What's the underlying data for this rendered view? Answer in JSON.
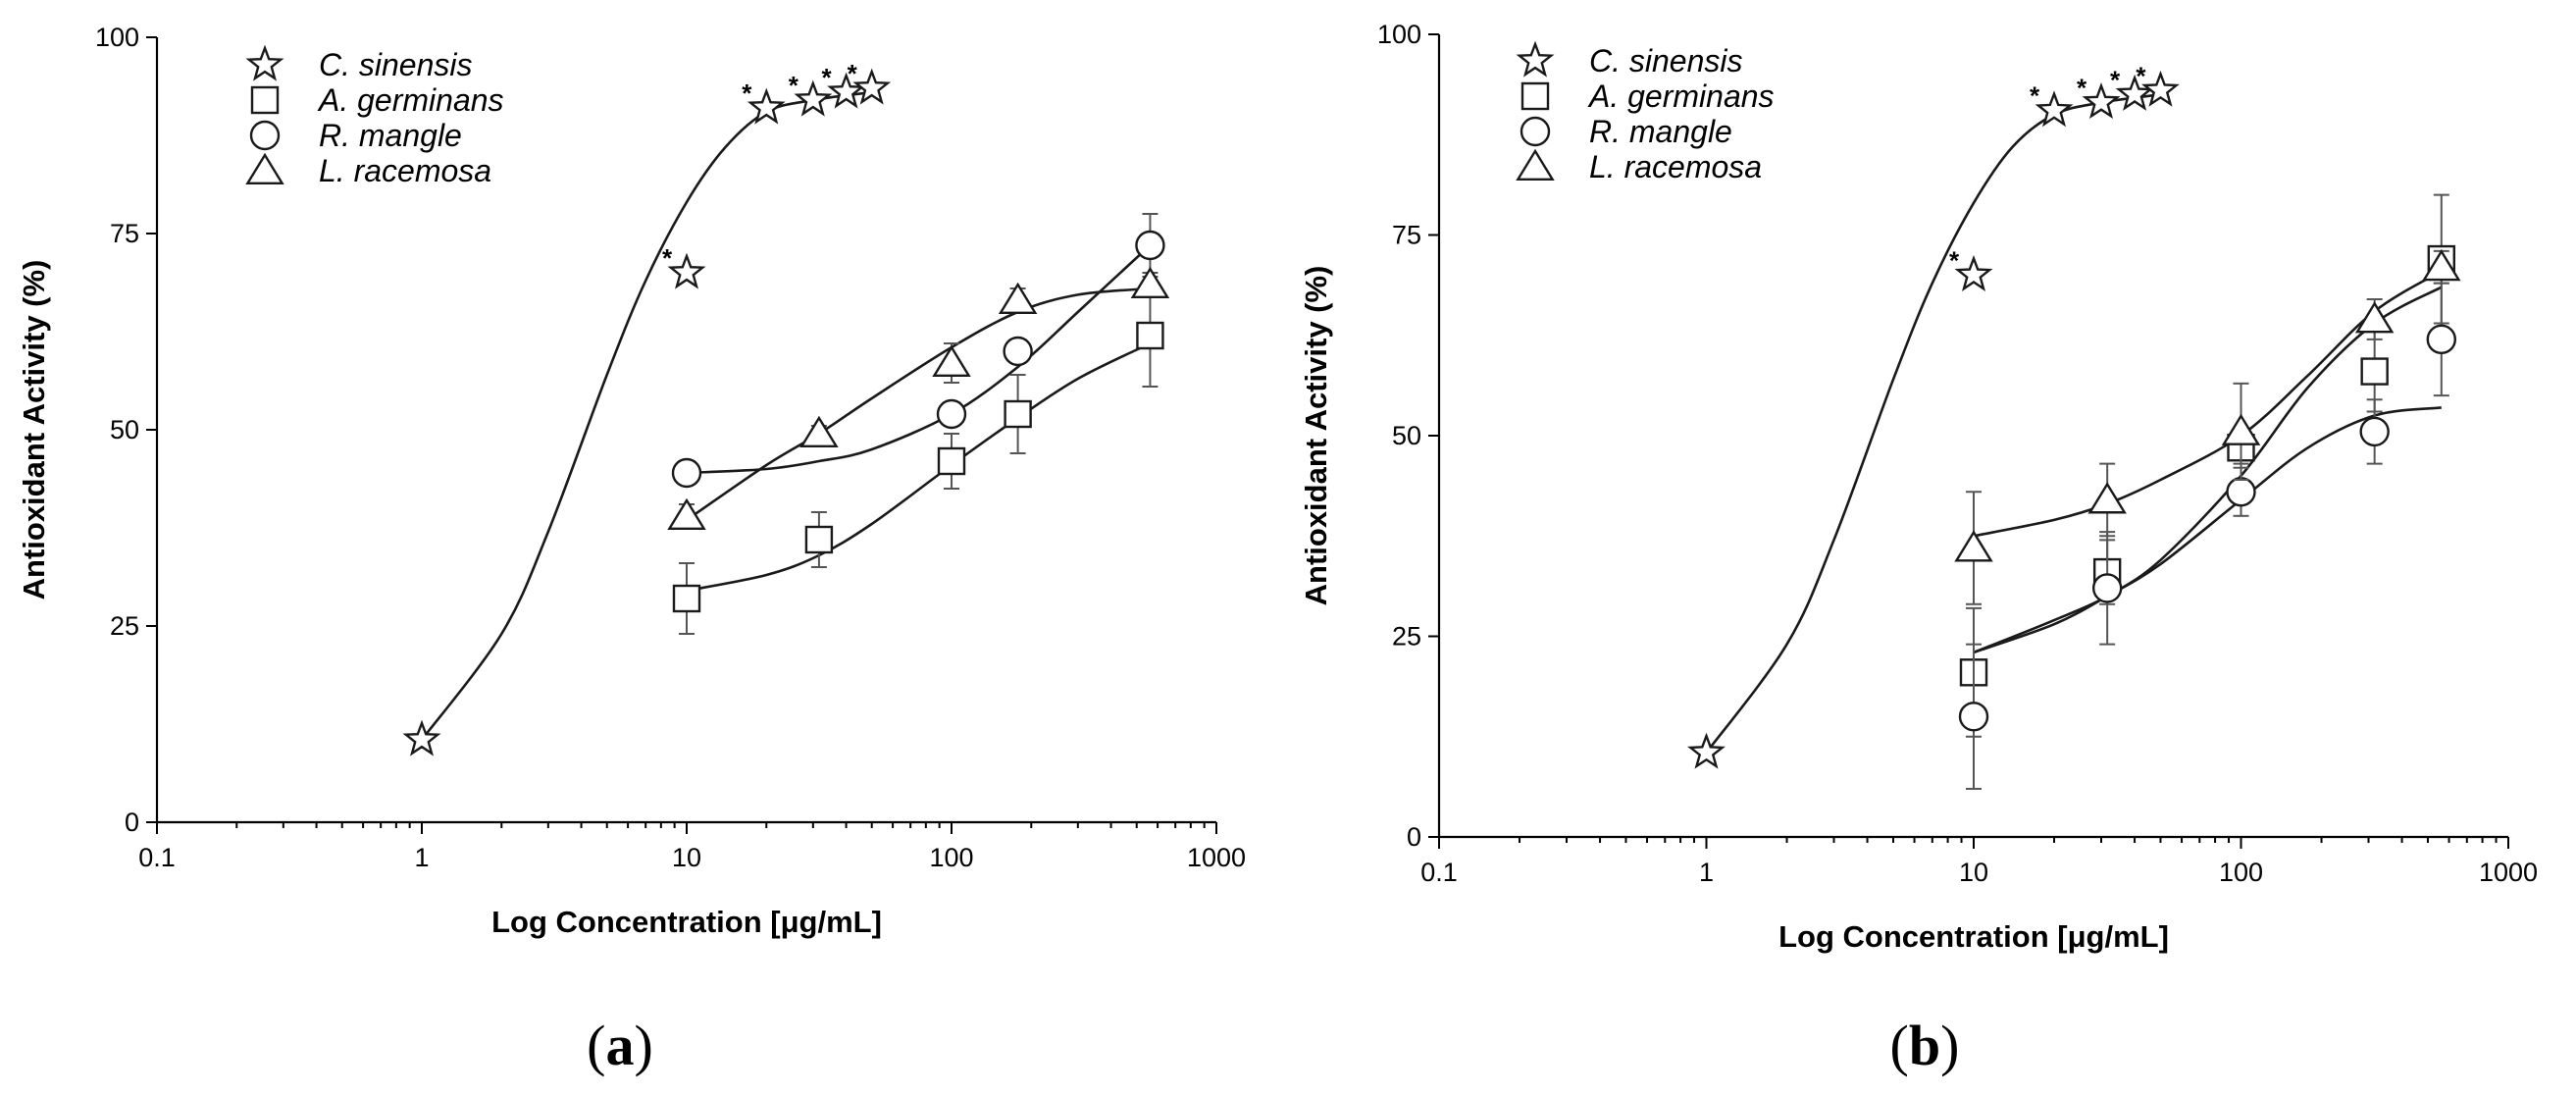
{
  "chart_data": [
    {
      "type": "scatter",
      "panel_label": "(a)",
      "xlabel": "Log Concentration [μg/mL]",
      "ylabel": "Antioxidant Activity (%)",
      "xscale": "log",
      "xlim": [
        0.1,
        1000
      ],
      "ylim": [
        0,
        100
      ],
      "xticks": [
        "0.1",
        "1",
        "10",
        "100",
        "1000"
      ],
      "yticks": [
        "0",
        "25",
        "50",
        "75",
        "100"
      ],
      "legend_position": "top-left",
      "series": [
        {
          "name": "C. sinensis",
          "marker": "star",
          "x": [
            1,
            10,
            20,
            30,
            40,
            50
          ],
          "y": [
            10.5,
            70,
            91,
            92,
            93,
            93.5
          ],
          "err": [
            0,
            0,
            0,
            0,
            0,
            0
          ],
          "significant": [
            false,
            true,
            true,
            true,
            true,
            true
          ],
          "fit_x": [
            1,
            2,
            3,
            5,
            7,
            10,
            14,
            20,
            30,
            50
          ],
          "fit_y": [
            10.5,
            24,
            37,
            57,
            69,
            79,
            86,
            90.5,
            92,
            93
          ]
        },
        {
          "name": "A. germinans",
          "marker": "square",
          "x": [
            10,
            31.6,
            100,
            178,
            562
          ],
          "y": [
            28.5,
            36,
            46,
            52,
            62
          ],
          "err": [
            4.5,
            3.5,
            3.5,
            5,
            6.5
          ],
          "significant": [
            false,
            false,
            false,
            false,
            false
          ],
          "fit_x": [
            10,
            20,
            31.6,
            50,
            100,
            178,
            300,
            562
          ],
          "fit_y": [
            29.5,
            31.5,
            34,
            38,
            45.5,
            51.5,
            56.5,
            61
          ]
        },
        {
          "name": "R. mangle",
          "marker": "circle",
          "x": [
            10,
            100,
            178,
            562
          ],
          "y": [
            44.5,
            52,
            60,
            73.5
          ],
          "err": [
            0.8,
            1.5,
            1.5,
            4
          ],
          "significant": [
            false,
            false,
            false,
            false
          ],
          "fit_x": [
            10,
            20,
            31.6,
            50,
            100,
            178,
            300,
            562
          ],
          "fit_y": [
            44.5,
            45,
            46,
            47.5,
            52,
            58,
            65,
            73.5
          ]
        },
        {
          "name": "L. racemosa",
          "marker": "triangle",
          "x": [
            10,
            31.6,
            100,
            178,
            562
          ],
          "y": [
            39,
            49.5,
            58.5,
            66.5,
            68.5
          ],
          "err": [
            1.5,
            1,
            2.5,
            1.5,
            1.5
          ],
          "significant": [
            false,
            false,
            false,
            false,
            false
          ],
          "fit_x": [
            10,
            20,
            31.6,
            50,
            100,
            178,
            300,
            562
          ],
          "fit_y": [
            38.5,
            45.5,
            49.5,
            54,
            60.5,
            65,
            67.2,
            68
          ]
        }
      ]
    },
    {
      "type": "scatter",
      "panel_label": "(b)",
      "xlabel": "Log Concentration [μg/mL]",
      "ylabel": "Antioxidant Activity (%)",
      "xscale": "log",
      "xlim": [
        0.1,
        1000
      ],
      "ylim": [
        0,
        100
      ],
      "xticks": [
        "0.1",
        "1",
        "10",
        "100",
        "1000"
      ],
      "yticks": [
        "0",
        "25",
        "50",
        "75",
        "100"
      ],
      "legend_position": "top-left",
      "series": [
        {
          "name": "C. sinensis",
          "marker": "star",
          "x": [
            1,
            10,
            20,
            30,
            40,
            50
          ],
          "y": [
            10.5,
            70,
            90.5,
            91.5,
            92.5,
            93
          ],
          "err": [
            0,
            0,
            0,
            0,
            0,
            0
          ],
          "significant": [
            false,
            true,
            true,
            true,
            true,
            true
          ],
          "fit_x": [
            1,
            2,
            3,
            5,
            7,
            10,
            14,
            20,
            30,
            50
          ],
          "fit_y": [
            10.5,
            24,
            37,
            57,
            69,
            79,
            86,
            90,
            91.5,
            92.5
          ]
        },
        {
          "name": "A. germinans",
          "marker": "square",
          "x": [
            10,
            31.6,
            100,
            316,
            562
          ],
          "y": [
            20.5,
            33,
            48.5,
            58,
            72
          ],
          "err": [
            8,
            4,
            2,
            5,
            8
          ],
          "significant": [
            false,
            false,
            false,
            false,
            false
          ],
          "fit_x": [
            10,
            20,
            31.6,
            50,
            100,
            178,
            316,
            562
          ],
          "fit_y": [
            23,
            27,
            30,
            34.5,
            45,
            56,
            64,
            68.5
          ]
        },
        {
          "name": "R. mangle",
          "marker": "circle",
          "x": [
            10,
            31.6,
            100,
            316,
            562
          ],
          "y": [
            15,
            31,
            43,
            50.5,
            62
          ],
          "err": [
            9,
            7,
            3,
            4,
            7
          ],
          "significant": [
            false,
            false,
            false,
            false,
            false
          ],
          "fit_x": [
            10,
            20,
            31.6,
            50,
            100,
            178,
            316,
            562
          ],
          "fit_y": [
            23,
            26.5,
            30,
            34,
            42,
            48.5,
            52.5,
            53.5
          ]
        },
        {
          "name": "L. racemosa",
          "marker": "triangle",
          "x": [
            10,
            31.6,
            100,
            316,
            562
          ],
          "y": [
            36,
            42,
            50.5,
            64.5,
            71
          ],
          "err": [
            7,
            4.5,
            6,
            2.5,
            2
          ],
          "significant": [
            false,
            false,
            false,
            false,
            false
          ],
          "fit_x": [
            10,
            20,
            31.6,
            50,
            100,
            178,
            316,
            562
          ],
          "fit_y": [
            37.5,
            39.5,
            41.5,
            44.5,
            50,
            57.5,
            65.5,
            70.5
          ]
        }
      ]
    }
  ]
}
